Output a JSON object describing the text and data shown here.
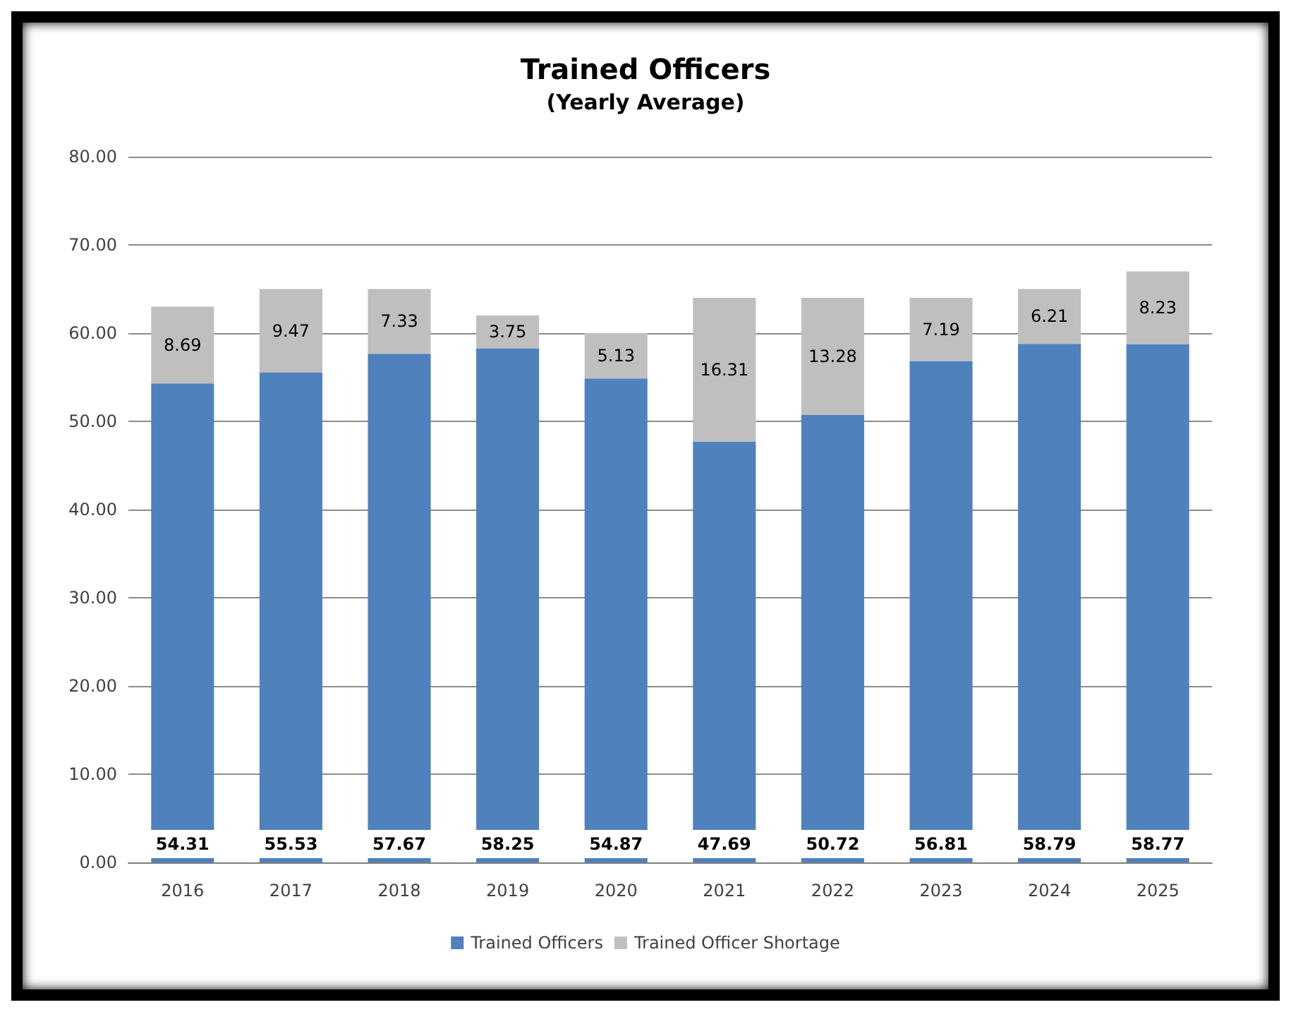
{
  "chart_data": {
    "type": "bar",
    "title": "Trained Officers",
    "subtitle": "(Yearly Average)",
    "categories": [
      "2016",
      "2017",
      "2018",
      "2019",
      "2020",
      "2021",
      "2022",
      "2023",
      "2024",
      "2025"
    ],
    "series": [
      {
        "name": "Trained Officers",
        "color": "#4f81bd",
        "values": [
          54.31,
          55.53,
          57.67,
          58.25,
          54.87,
          47.69,
          50.72,
          56.81,
          58.79,
          58.77
        ]
      },
      {
        "name": "Trained Officer Shortage",
        "color": "#bfbfbf",
        "values": [
          8.69,
          9.47,
          7.33,
          3.75,
          5.13,
          16.31,
          13.28,
          7.19,
          6.21,
          8.23
        ]
      }
    ],
    "stacked": true,
    "data_labels": true,
    "ylim": [
      0,
      80
    ],
    "yticks": [
      {
        "value": 0,
        "label": "0.00"
      },
      {
        "value": 10,
        "label": "10.00"
      },
      {
        "value": 20,
        "label": "20.00"
      },
      {
        "value": 30,
        "label": "30.00"
      },
      {
        "value": 40,
        "label": "40.00"
      },
      {
        "value": 50,
        "label": "50.00"
      },
      {
        "value": 60,
        "label": "60.00"
      },
      {
        "value": 70,
        "label": "70.00"
      },
      {
        "value": 80,
        "label": "80.00"
      }
    ],
    "grid": "y",
    "legend": "bottom"
  }
}
